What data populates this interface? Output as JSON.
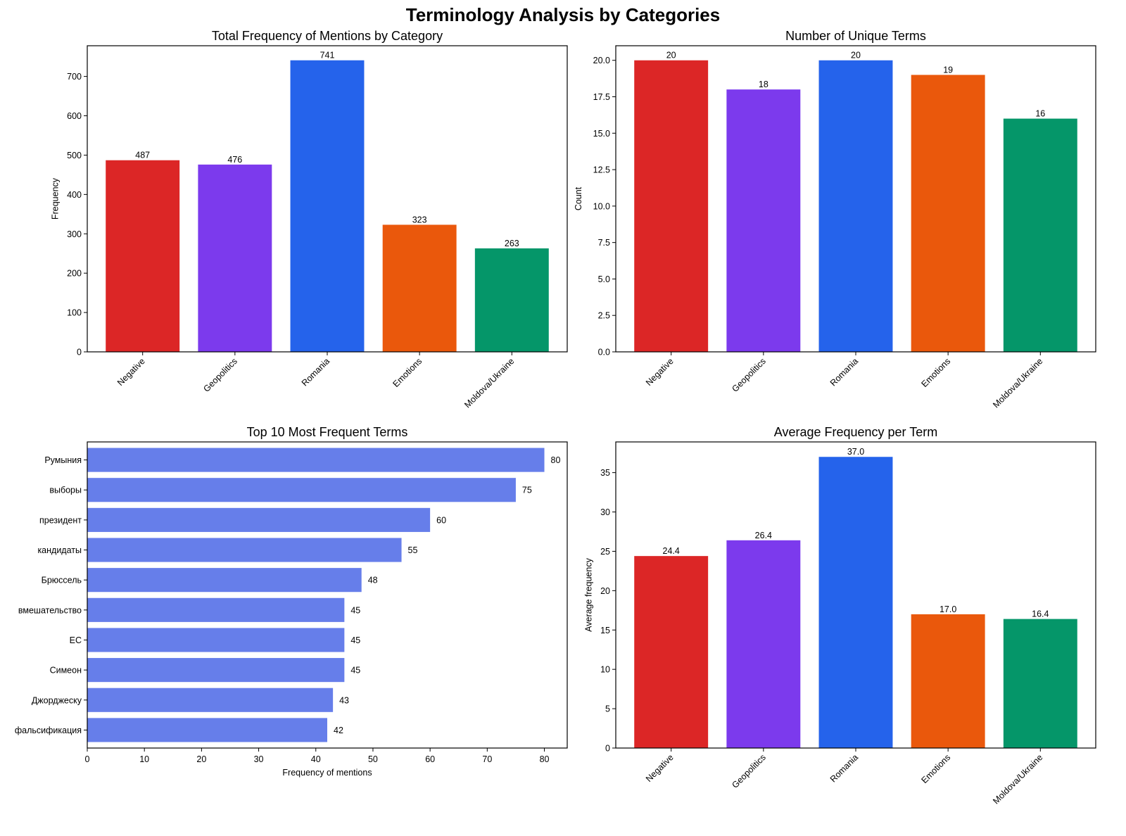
{
  "figure": {
    "suptitle": "Terminology Analysis by Categories"
  },
  "chart_data": [
    {
      "type": "bar",
      "id": "total-frequency",
      "title": "Total Frequency of Mentions by Category",
      "xlabel": "",
      "ylabel": "Frequency",
      "categories": [
        "Negative",
        "Geopolitics",
        "Romania",
        "Emotions",
        "Moldova/Ukraine"
      ],
      "values": [
        487,
        476,
        741,
        323,
        263
      ],
      "value_labels": [
        "487",
        "476",
        "741",
        "323",
        "263"
      ],
      "colors": [
        "#dc2626",
        "#7c3aed",
        "#2563eb",
        "#ea580c",
        "#059669"
      ],
      "ylim": [
        0,
        778
      ],
      "yticks": [
        0,
        100,
        200,
        300,
        400,
        500,
        600,
        700
      ],
      "ytick_labels": [
        "0",
        "100",
        "200",
        "300",
        "400",
        "500",
        "600",
        "700"
      ],
      "grid": false,
      "xtick_rotation": 45
    },
    {
      "type": "bar",
      "id": "unique-terms",
      "title": "Number of Unique Terms",
      "xlabel": "",
      "ylabel": "Count",
      "categories": [
        "Negative",
        "Geopolitics",
        "Romania",
        "Emotions",
        "Moldova/Ukraine"
      ],
      "values": [
        20,
        18,
        20,
        19,
        16
      ],
      "value_labels": [
        "20",
        "18",
        "20",
        "19",
        "16"
      ],
      "colors": [
        "#dc2626",
        "#7c3aed",
        "#2563eb",
        "#ea580c",
        "#059669"
      ],
      "ylim": [
        0,
        21
      ],
      "yticks": [
        0,
        2.5,
        5,
        7.5,
        10,
        12.5,
        15,
        17.5,
        20
      ],
      "ytick_labels": [
        "0.0",
        "2.5",
        "5.0",
        "7.5",
        "10.0",
        "12.5",
        "15.0",
        "17.5",
        "20.0"
      ],
      "grid": false,
      "xtick_rotation": 45
    },
    {
      "type": "bar",
      "orientation": "horizontal",
      "id": "top-terms",
      "title": "Top 10 Most Frequent Terms",
      "xlabel": "Frequency of mentions",
      "ylabel": "",
      "categories": [
        "Румыния",
        "выборы",
        "президент",
        "кандидаты",
        "Брюссель",
        "вмешательство",
        "ЕС",
        "Симеон",
        "Джорджеску",
        "фальсификация"
      ],
      "values": [
        80,
        75,
        60,
        55,
        48,
        45,
        45,
        45,
        43,
        42
      ],
      "value_labels": [
        "80",
        "75",
        "60",
        "55",
        "48",
        "45",
        "45",
        "45",
        "43",
        "42"
      ],
      "color": "#667eea",
      "xlim": [
        0,
        84
      ],
      "xticks": [
        0,
        10,
        20,
        30,
        40,
        50,
        60,
        70,
        80
      ],
      "xtick_labels": [
        "0",
        "10",
        "20",
        "30",
        "40",
        "50",
        "60",
        "70",
        "80"
      ],
      "grid": false
    },
    {
      "type": "bar",
      "id": "average-frequency",
      "title": "Average Frequency per Term",
      "xlabel": "",
      "ylabel": "Average frequency",
      "categories": [
        "Negative",
        "Geopolitics",
        "Romania",
        "Emotions",
        "Moldova/Ukraine"
      ],
      "values": [
        24.4,
        26.4,
        37.0,
        17.0,
        16.4
      ],
      "value_labels": [
        "24.4",
        "26.4",
        "37.0",
        "17.0",
        "16.4"
      ],
      "colors": [
        "#dc2626",
        "#7c3aed",
        "#2563eb",
        "#ea580c",
        "#059669"
      ],
      "ylim": [
        0,
        38.9
      ],
      "yticks": [
        0,
        5,
        10,
        15,
        20,
        25,
        30,
        35
      ],
      "ytick_labels": [
        "0",
        "5",
        "10",
        "15",
        "20",
        "25",
        "30",
        "35"
      ],
      "grid": false,
      "xtick_rotation": 45
    }
  ]
}
